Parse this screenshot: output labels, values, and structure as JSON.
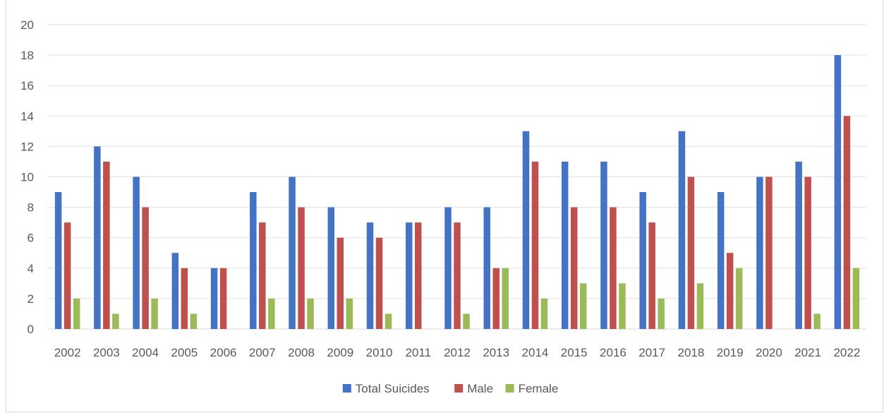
{
  "chart_data": {
    "type": "bar",
    "title": "",
    "xlabel": "",
    "ylabel": "",
    "ylim": [
      0,
      20
    ],
    "yticks": [
      "0",
      "2",
      "4",
      "6",
      "8",
      "10",
      "12",
      "14",
      "16",
      "18",
      "20"
    ],
    "grid": true,
    "legend_position": "bottom",
    "categories": [
      "2002",
      "2003",
      "2004",
      "2005",
      "2006",
      "2007",
      "2008",
      "2009",
      "2010",
      "2011",
      "2012",
      "2013",
      "2014",
      "2015",
      "2016",
      "2017",
      "2018",
      "2019",
      "2020",
      "2021",
      "2022"
    ],
    "series": [
      {
        "name": "Total Suicides",
        "color": "#4472c4",
        "values": [
          9,
          12,
          10,
          5,
          4,
          9,
          10,
          8,
          7,
          7,
          8,
          8,
          13,
          11,
          11,
          9,
          13,
          9,
          10,
          11,
          18
        ]
      },
      {
        "name": "Male",
        "color": "#c0504d",
        "values": [
          7,
          11,
          8,
          4,
          4,
          7,
          8,
          6,
          6,
          7,
          7,
          4,
          11,
          8,
          8,
          7,
          10,
          5,
          10,
          10,
          14
        ]
      },
      {
        "name": "Female",
        "color": "#9bbb59",
        "values": [
          2,
          1,
          2,
          1,
          0,
          2,
          2,
          2,
          1,
          0,
          1,
          4,
          2,
          3,
          3,
          2,
          3,
          4,
          0,
          1,
          4
        ]
      }
    ]
  }
}
